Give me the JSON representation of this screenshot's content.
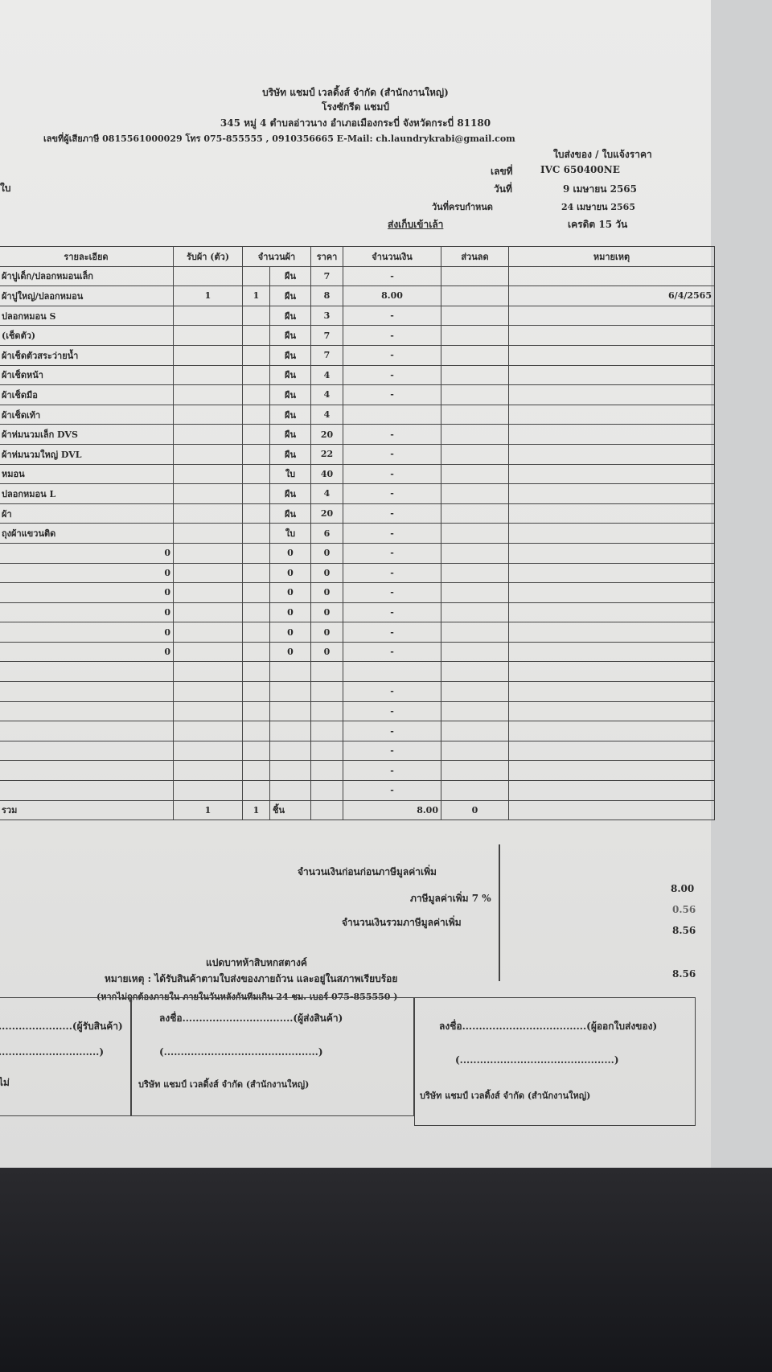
{
  "header": {
    "company": "บริษัท แชมป์ เวลดิ้งส์ จำกัด (สำนักงานใหญ่)",
    "factory": "โรงซักรีด แชมป์",
    "address": "345 หมู่ 4 ตำบลอ่าวนาง อำเภอเมืองกระบี่ จังหวัดกระบี่ 81180",
    "contact": "เลขที่ผู้เสียภาษี 0815561000029 โทร 075-855555 , 0910356665 E-Mail: ch.laundrykrabi@gmail.com",
    "doc_type": "ใบส่งของ / ใบแจ้งราคา",
    "left_fragment": "ใบ",
    "number_label": "เลขที่",
    "number": "IVC 650400NE",
    "date_label": "วันที่",
    "date": "9 เมษายน 2565",
    "due_label": "วันที่ครบกำหนด",
    "due": "24 เมษายน 2565",
    "section_label": "ส่งเก็บเข้าเล้า",
    "credit": "เครดิต 15 วัน"
  },
  "table": {
    "headers": [
      "รายละเอียด",
      "รับผ้า (ตัว)",
      "จำนวนผ้า",
      "ราคา",
      "จำนวนเงิน",
      "ส่วนลด",
      "หมายเหตุ"
    ],
    "rows": [
      {
        "desc": "ผ้าปูเด็ก/ปลอกหมอนเล็ก",
        "recv": "",
        "qty": "",
        "unit": "ผืน",
        "price": "7",
        "amount": "-",
        "disc": "",
        "note": ""
      },
      {
        "desc": "ผ้าปูใหญ่/ปลอกหมอน",
        "recv": "1",
        "qty": "1",
        "unit": "ผืน",
        "price": "8",
        "amount": "8.00",
        "disc": "",
        "note": "6/4/2565"
      },
      {
        "desc": "ปลอกหมอน S",
        "recv": "",
        "qty": "",
        "unit": "ผืน",
        "price": "3",
        "amount": "-",
        "disc": "",
        "note": ""
      },
      {
        "desc": "(เช็ดตัว)",
        "recv": "",
        "qty": "",
        "unit": "ผืน",
        "price": "7",
        "amount": "-",
        "disc": "",
        "note": ""
      },
      {
        "desc": "ผ้าเช็ดตัวสระว่ายน้ำ",
        "recv": "",
        "qty": "",
        "unit": "ผืน",
        "price": "7",
        "amount": "-",
        "disc": "",
        "note": ""
      },
      {
        "desc": "ผ้าเช็ดหน้า",
        "recv": "",
        "qty": "",
        "unit": "ผืน",
        "price": "4",
        "amount": "-",
        "disc": "",
        "note": ""
      },
      {
        "desc": "ผ้าเช็ดมือ",
        "recv": "",
        "qty": "",
        "unit": "ผืน",
        "price": "4",
        "amount": "-",
        "disc": "",
        "note": ""
      },
      {
        "desc": "ผ้าเช็ดเท้า",
        "recv": "",
        "qty": "",
        "unit": "ผืน",
        "price": "4",
        "amount": "",
        "disc": "",
        "note": ""
      },
      {
        "desc": "ผ้าห่มนวมเล็ก DVS",
        "recv": "",
        "qty": "",
        "unit": "ผืน",
        "price": "20",
        "amount": "-",
        "disc": "",
        "note": ""
      },
      {
        "desc": "ผ้าห่มนวมใหญ่ DVL",
        "recv": "",
        "qty": "",
        "unit": "ผืน",
        "price": "22",
        "amount": "-",
        "disc": "",
        "note": ""
      },
      {
        "desc": "หมอน",
        "recv": "",
        "qty": "",
        "unit": "ใบ",
        "price": "40",
        "amount": "-",
        "disc": "",
        "note": ""
      },
      {
        "desc": "ปลอกหมอน L",
        "recv": "",
        "qty": "",
        "unit": "ผืน",
        "price": "4",
        "amount": "-",
        "disc": "",
        "note": ""
      },
      {
        "desc": "ผ้า",
        "recv": "",
        "qty": "",
        "unit": "ผืน",
        "price": "20",
        "amount": "-",
        "disc": "",
        "note": ""
      },
      {
        "desc": "ถุงผ้าแขวนติด",
        "recv": "",
        "qty": "",
        "unit": "ใบ",
        "price": "6",
        "amount": "-",
        "disc": "",
        "note": ""
      },
      {
        "desc": "0",
        "recv": "",
        "qty": "",
        "unit": "0",
        "price": "0",
        "amount": "-",
        "disc": "",
        "note": ""
      },
      {
        "desc": "0",
        "recv": "",
        "qty": "",
        "unit": "0",
        "price": "0",
        "amount": "-",
        "disc": "",
        "note": ""
      },
      {
        "desc": "0",
        "recv": "",
        "qty": "",
        "unit": "0",
        "price": "0",
        "amount": "-",
        "disc": "",
        "note": ""
      },
      {
        "desc": "0",
        "recv": "",
        "qty": "",
        "unit": "0",
        "price": "0",
        "amount": "-",
        "disc": "",
        "note": ""
      },
      {
        "desc": "0",
        "recv": "",
        "qty": "",
        "unit": "0",
        "price": "0",
        "amount": "-",
        "disc": "",
        "note": ""
      },
      {
        "desc": "0",
        "recv": "",
        "qty": "",
        "unit": "0",
        "price": "0",
        "amount": "-",
        "disc": "",
        "note": ""
      },
      {
        "desc": "",
        "recv": "",
        "qty": "",
        "unit": "",
        "price": "",
        "amount": "",
        "disc": "",
        "note": ""
      },
      {
        "desc": "",
        "recv": "",
        "qty": "",
        "unit": "",
        "price": "",
        "amount": "-",
        "disc": "",
        "note": ""
      },
      {
        "desc": "",
        "recv": "",
        "qty": "",
        "unit": "",
        "price": "",
        "amount": "-",
        "disc": "",
        "note": ""
      },
      {
        "desc": "",
        "recv": "",
        "qty": "",
        "unit": "",
        "price": "",
        "amount": "-",
        "disc": "",
        "note": ""
      },
      {
        "desc": "",
        "recv": "",
        "qty": "",
        "unit": "",
        "price": "",
        "amount": "-",
        "disc": "",
        "note": ""
      },
      {
        "desc": "",
        "recv": "",
        "qty": "",
        "unit": "",
        "price": "",
        "amount": "-",
        "disc": "",
        "note": ""
      },
      {
        "desc": "",
        "recv": "",
        "qty": "",
        "unit": "",
        "price": "",
        "amount": "-",
        "disc": "",
        "note": ""
      }
    ],
    "total": {
      "label": "รวม",
      "recv": "1",
      "qty": "1",
      "unit": "ชิ้น",
      "amount": "8.00",
      "disc": "0"
    }
  },
  "summary": {
    "subtotal_label": "จำนวนเงินก่อนก่อนภาษีมูลค่าเพิ่ม",
    "subtotal": "8.00",
    "vat_label": "ภาษีมูลค่าเพิ่ม 7 %",
    "vat": "0.56",
    "grand_label": "จำนวนเงินรวมภาษีมูลค่าเพิ่ม",
    "grand": "8.56",
    "words": "แปดบาทห้าสิบหกสตางค์",
    "words_total": "8.56"
  },
  "notes": {
    "line1": "หมายเหตุ : ได้รับสินค้าตามใบส่งของภายถ้วน และอยู่ในสภาพเรียบร้อย",
    "line2": "(หากไม่ถูกต้องภายใน ภายในวันหลังกันทีมเกิน 24 ชม. เบอร์ 075-855550 )"
  },
  "signatures": {
    "receiver": "......................(ผู้รับสินค้า)",
    "receiver_paren": "..............................)",
    "left_fragment": "ไม่",
    "sign_label": "ลงชื่อ",
    "sender": "ลงชื่อ.................................(ผู้ส่งสินค้า)",
    "sender_paren": "(..............................................)",
    "issuer": "ลงชื่อ.....................................(ผู้ออกใบส่งของ)",
    "issuer_paren": "(..............................................)",
    "company_line": "บริษัท แชมป์ เวลดิ้งส์ จำกัด (สำนักงานใหญ่)"
  }
}
